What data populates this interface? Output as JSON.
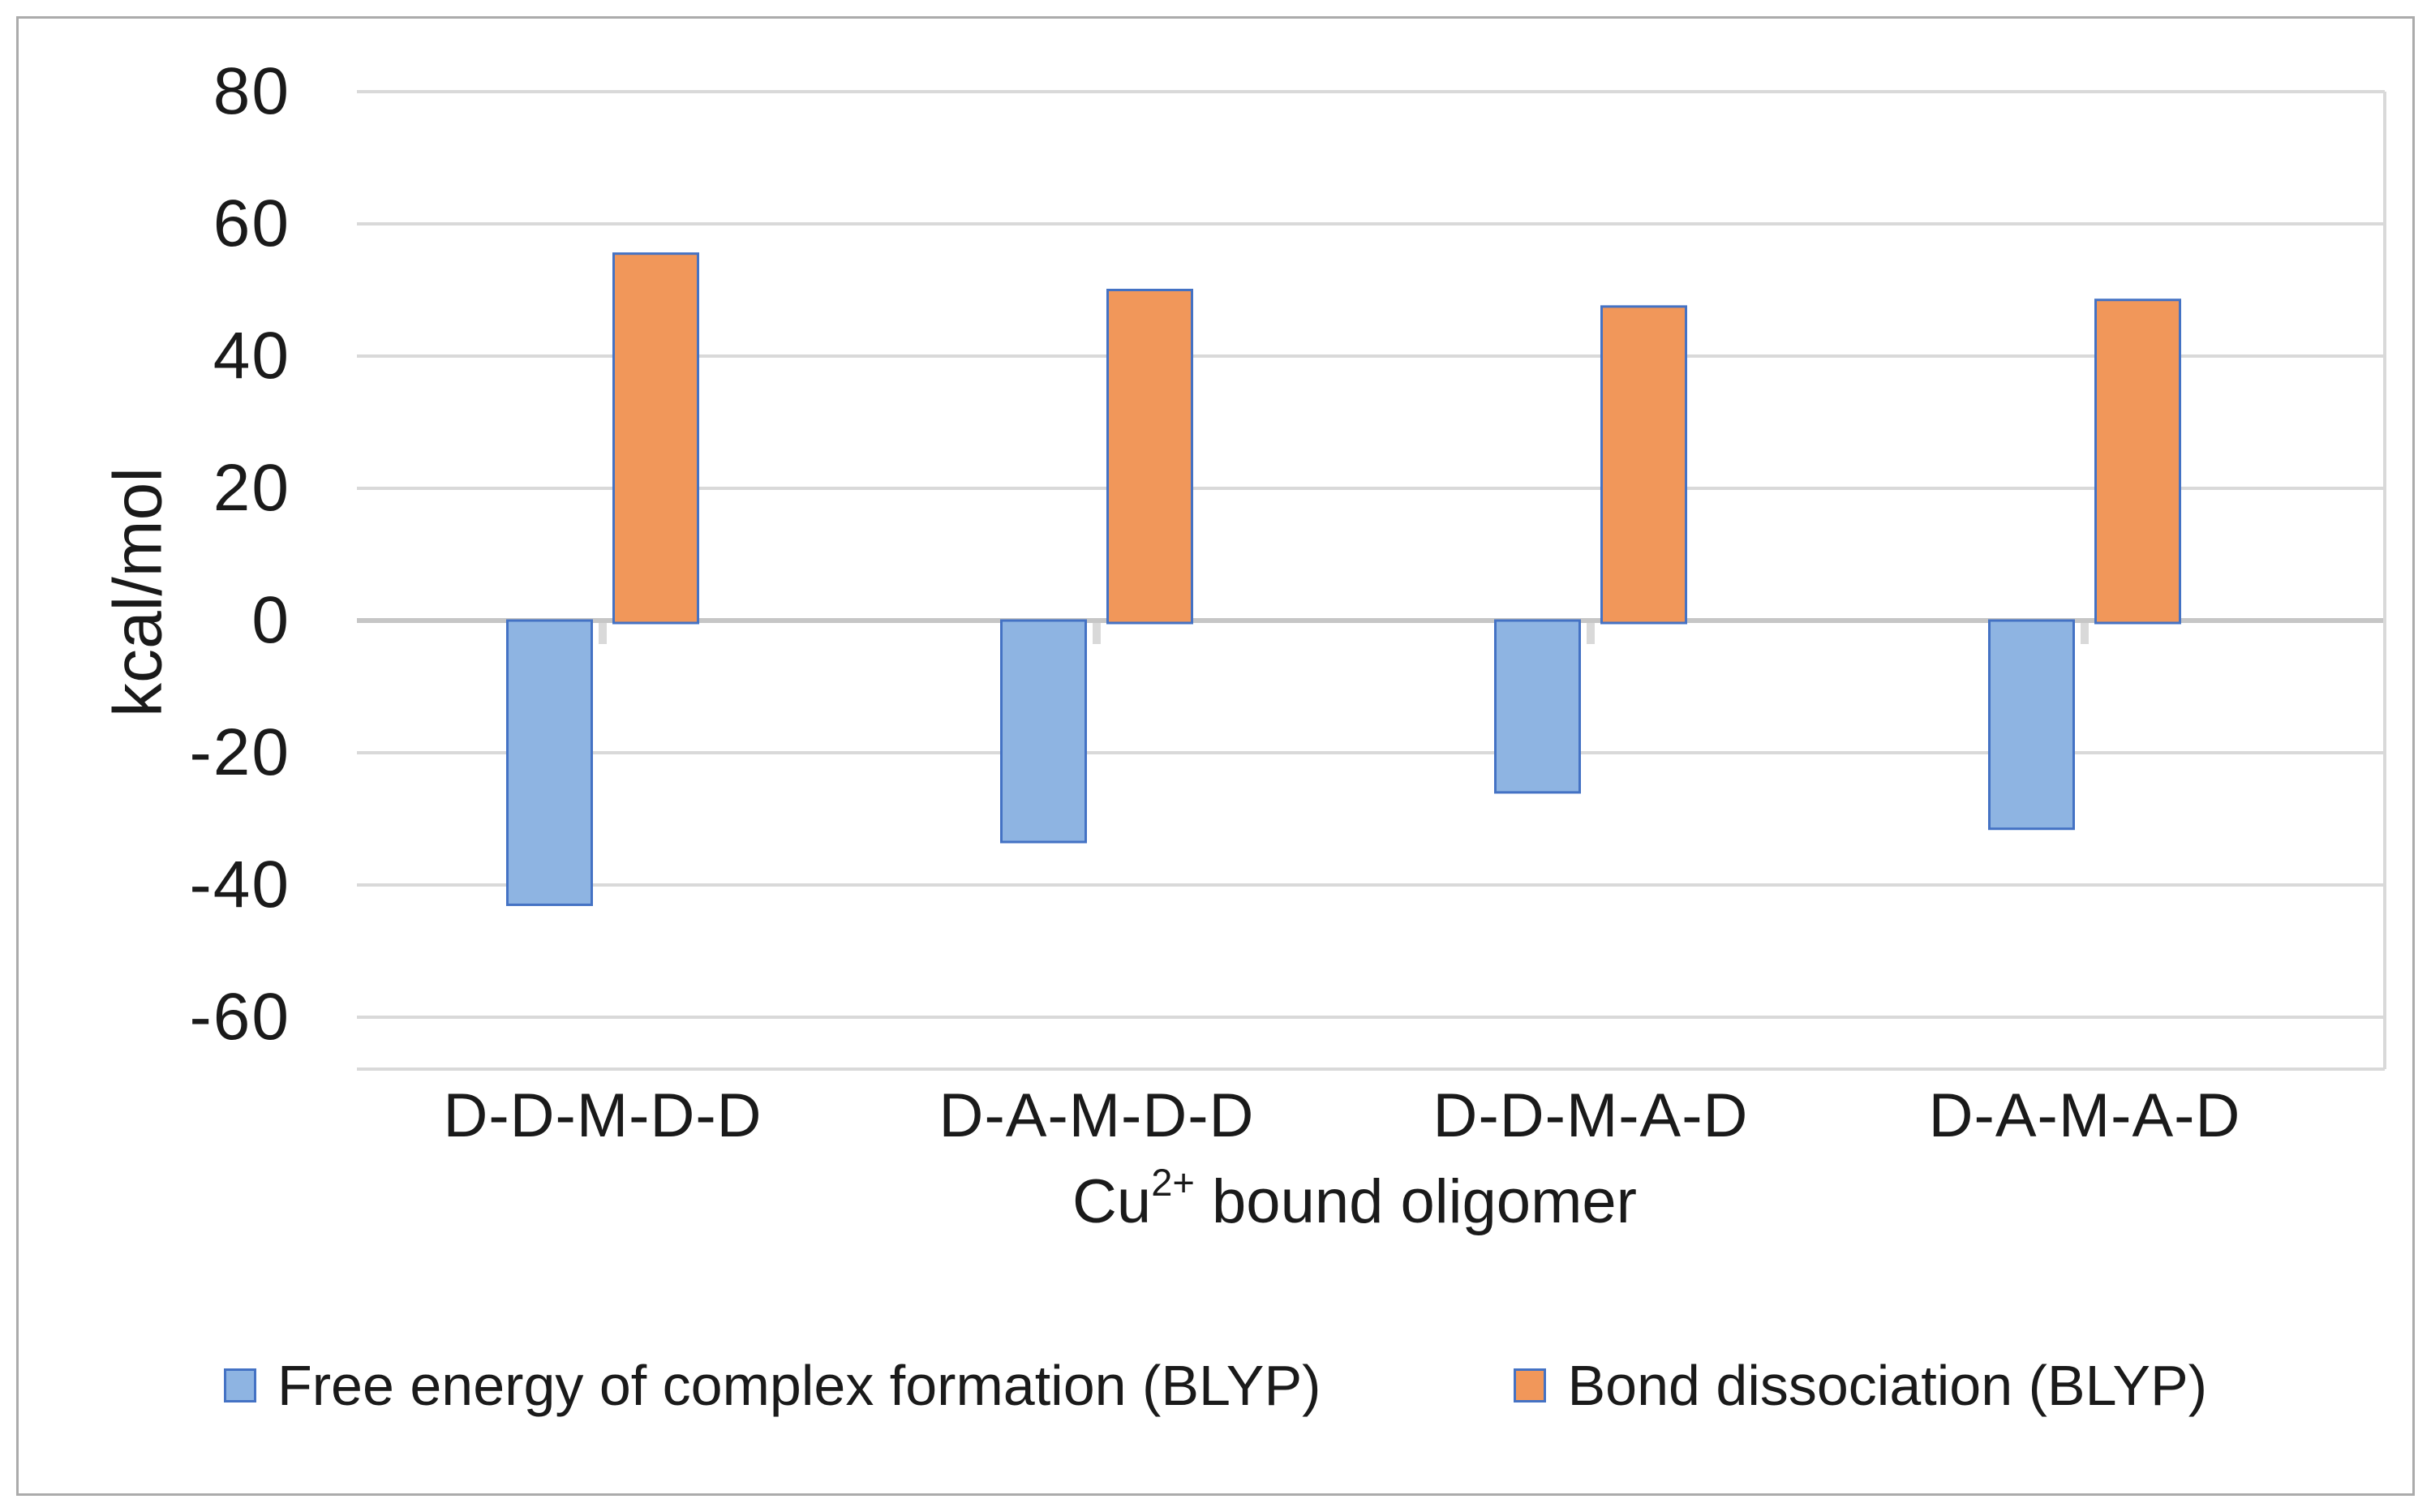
{
  "chart_data": {
    "type": "bar",
    "title": "",
    "categories": [
      "D-D-M-D-D",
      "D-A-M-D-D",
      "D-D-M-A-D",
      "D-A-M-A-D"
    ],
    "series": [
      {
        "name": "Free energy of complex formation (BLYP)",
        "values": [
          -43,
          -33.5,
          -26,
          -31.5
        ],
        "fill": "#8EB4E2",
        "border": "#4472C4"
      },
      {
        "name": "Bond dissociation (BLYP)",
        "values": [
          55.5,
          50,
          47.5,
          48.5
        ],
        "fill": "#F1975A",
        "border": "#4472C4"
      }
    ],
    "ylabel": "kcal/mol",
    "x_axis_title": {
      "text": "Cu2+ bound oligomer",
      "base": "Cu",
      "superscript": "2+",
      "suffix": " bound oligomer"
    },
    "y_ticks": [
      80,
      60,
      40,
      20,
      0,
      -20,
      -40,
      -60
    ],
    "ylim": [
      -68,
      82
    ],
    "grid": "horizontal",
    "legend_position": "bottom"
  },
  "palette": {
    "gridline": "#D9D9D9",
    "zero_axis_line": "#C6C6C6",
    "plot_border": "#D9D9D9",
    "tick_mark": "#D9D9D9",
    "text": "#1A1A1A",
    "outer_frame": "#ABABAB"
  }
}
